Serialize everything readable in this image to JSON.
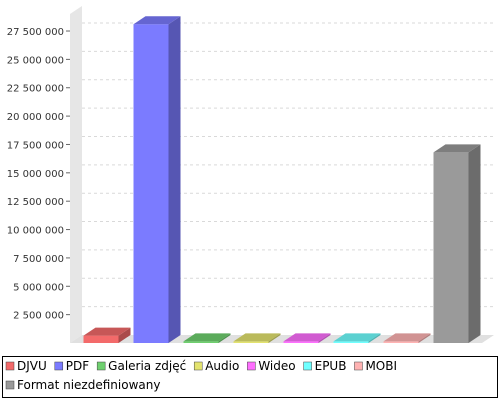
{
  "chart_data": {
    "type": "bar",
    "style": "3d",
    "categories": [
      "DJVU",
      "PDF",
      "Galeria zdjęć",
      "Audio",
      "Wideo",
      "EPUB",
      "MOBI",
      "Format niezdefiniowany"
    ],
    "series": [
      {
        "values": [
          650000,
          28100000,
          140000,
          140000,
          140000,
          140000,
          140000,
          16800000
        ]
      }
    ],
    "colors": [
      "#f36a6a",
      "#7b7bff",
      "#6fd06f",
      "#e3e36f",
      "#ff6fff",
      "#6fffff",
      "#ffb3b3",
      "#9a9a9a"
    ],
    "ylim": [
      0,
      29000000
    ],
    "yticks": [
      2500000,
      5000000,
      7500000,
      10000000,
      12500000,
      15000000,
      17500000,
      20000000,
      22500000,
      25000000,
      27500000
    ],
    "ytick_labels": [
      "2 500 000",
      "5 000 000",
      "7 500 000",
      "10 000 000",
      "12 500 000",
      "15 000 000",
      "17 500 000",
      "20 000 000",
      "22 500 000",
      "25 000 000",
      "27 500 000"
    ],
    "grid": true,
    "legend_position": "bottom"
  }
}
